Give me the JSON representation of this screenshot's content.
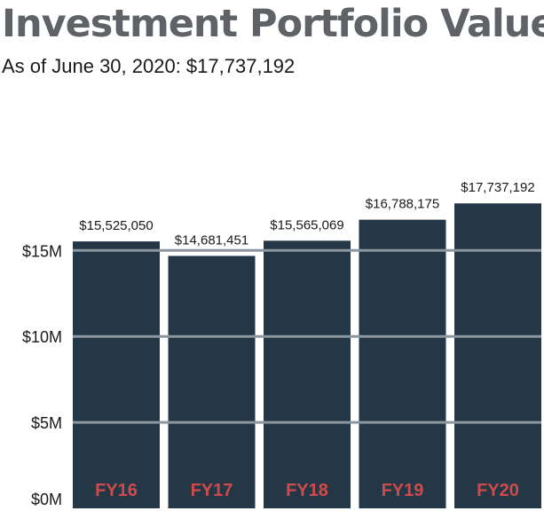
{
  "chart_data": {
    "type": "bar",
    "title": "Investment Portfolio Value",
    "subtitle": "As of June 30, 2020: $17,737,192",
    "categories": [
      "FY16",
      "FY17",
      "FY18",
      "FY19",
      "FY20"
    ],
    "values": [
      15525050,
      14681451,
      15565069,
      16788175,
      17737192
    ],
    "value_labels": [
      "$15,525,050",
      "$14,681,451",
      "$15,565,069",
      "$16,788,175",
      "$17,737,192"
    ],
    "ylim": [
      0,
      17750000
    ],
    "yticks": [
      0,
      5000000,
      10000000,
      15000000
    ],
    "ytick_labels": [
      "$0M",
      "$5M",
      "$10M",
      "$15M"
    ],
    "grid": true,
    "colors": {
      "bar": "#233746",
      "gridline": "#8c96a0",
      "category_label": "#cf4b4b",
      "title": "#5f6266"
    }
  }
}
